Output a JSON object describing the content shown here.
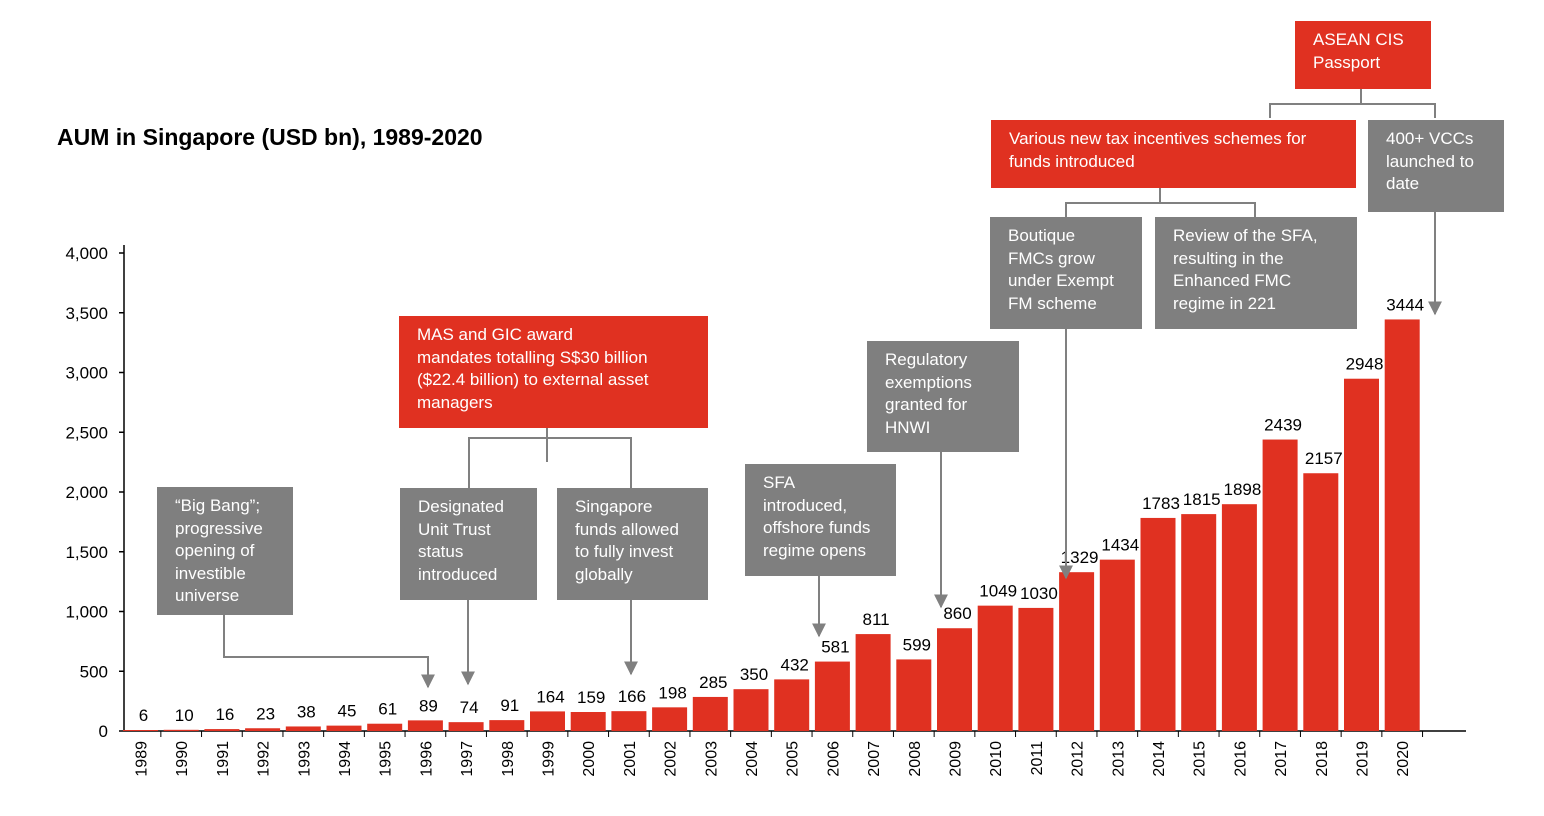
{
  "chart_data": {
    "type": "bar",
    "title": "AUM in Singapore (USD bn), 1989-2020",
    "xlabel": "",
    "ylabel": "",
    "ylim": [
      0,
      4000
    ],
    "yticks": [
      "0",
      "500",
      "1,000",
      "1,500",
      "2,000",
      "2,500",
      "3,000",
      "3,500",
      "4,000"
    ],
    "grid": false,
    "bar_color": "#e03121",
    "categories": [
      "1989",
      "1990",
      "1991",
      "1992",
      "1993",
      "1994",
      "1995",
      "1996",
      "1997",
      "1998",
      "1999",
      "2000",
      "2001",
      "2002",
      "2003",
      "2004",
      "2005",
      "2006",
      "2007",
      "2008",
      "2009",
      "2010",
      "2011",
      "2012",
      "2013",
      "2014",
      "2015",
      "2016",
      "2017",
      "2018",
      "2019",
      "2020"
    ],
    "values": [
      6,
      10,
      16,
      23,
      38,
      45,
      61,
      89,
      74,
      91,
      164,
      159,
      166,
      198,
      285,
      350,
      432,
      581,
      811,
      599,
      860,
      1049,
      1030,
      1329,
      1434,
      1783,
      1815,
      1898,
      2439,
      2157,
      2948,
      3444
    ],
    "bar_heights": [
      6,
      10,
      16,
      23,
      38,
      45,
      61,
      89,
      74,
      91,
      164,
      159,
      166,
      198,
      285,
      350,
      432,
      581,
      811,
      599,
      860,
      1049,
      1030,
      1329,
      1434,
      1783,
      1815,
      1898,
      2439,
      2157,
      2948,
      3444
    ]
  },
  "annotations": {
    "big_bang": [
      "“Big Bang”;",
      "progressive",
      "opening of",
      "investible",
      "universe"
    ],
    "mas_gic": [
      "MAS and GIC award",
      "mandates totalling S$30 billion",
      "($22.4 billion) to external asset",
      "managers"
    ],
    "dut": [
      "Designated",
      "Unit Trust",
      "status",
      "introduced"
    ],
    "sg_funds": [
      "Singapore",
      "funds allowed",
      "to fully invest",
      "globally"
    ],
    "sfa": [
      "SFA",
      "introduced,",
      "offshore funds",
      "regime opens"
    ],
    "reg_exempt": [
      "Regulatory",
      "exemptions",
      "granted for",
      "HNWI"
    ],
    "boutique": [
      "Boutique",
      "FMCs grow",
      "under Exempt",
      "FM scheme"
    ],
    "review_sfa": [
      "Review of the SFA,",
      "resulting in the",
      "Enhanced FMC",
      "regime in 221"
    ],
    "tax_incentives": [
      "Various new tax incentives schemes for",
      "funds introduced"
    ],
    "asean": [
      "ASEAN CIS",
      "Passport"
    ],
    "vcc": [
      "400+ VCCs",
      "launched to",
      "date"
    ]
  }
}
